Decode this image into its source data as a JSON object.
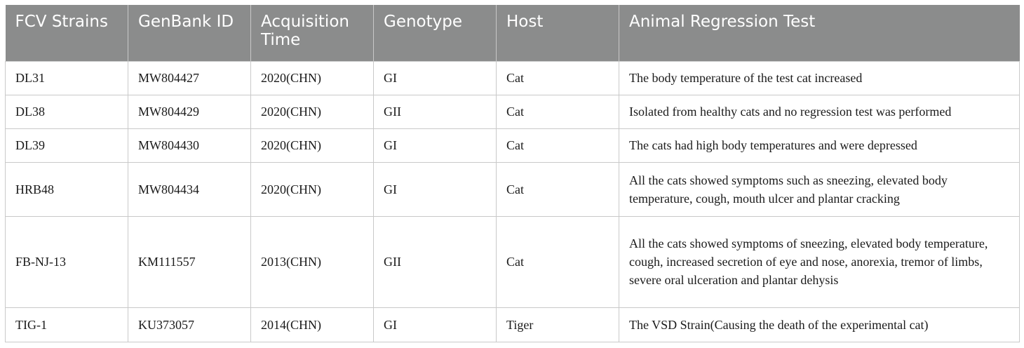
{
  "table": {
    "headers": [
      "FCV Strains",
      "GenBank ID",
      "Acquisition Time",
      "Genotype",
      "Host",
      "Animal Regression Test"
    ],
    "rows": [
      [
        "DL31",
        "MW804427",
        "2020(CHN)",
        "GI",
        "Cat",
        "The body temperature of the test cat increased"
      ],
      [
        "DL38",
        "MW804429",
        "2020(CHN)",
        "GII",
        "Cat",
        "Isolated from healthy cats and no regression test was performed"
      ],
      [
        "DL39",
        "MW804430",
        "2020(CHN)",
        "GI",
        "Cat",
        "The cats had high body temperatures and were depressed"
      ],
      [
        "HRB48",
        "MW804434",
        "2020(CHN)",
        "GI",
        "Cat",
        "All the cats showed symptoms such as sneezing, elevated body temperature, cough, mouth ulcer and plantar cracking"
      ],
      [
        "FB-NJ-13",
        "KM111557",
        "2013(CHN)",
        "GII",
        "Cat",
        "All the cats showed symptoms of sneezing, elevated body temperature, cough, increased secretion of eye and nose, anorexia, tremor of limbs, severe oral ulceration and plantar dehysis"
      ],
      [
        "TIG-1",
        "KU373057",
        "2014(CHN)",
        "GI",
        "Tiger",
        "The VSD Strain(Causing the death of the experimental cat)"
      ]
    ]
  },
  "colors": {
    "header_background": "#8b8c8c",
    "header_text": "#ffffff",
    "border": "#c9c9c9",
    "body_text": "#1a1a1a"
  }
}
